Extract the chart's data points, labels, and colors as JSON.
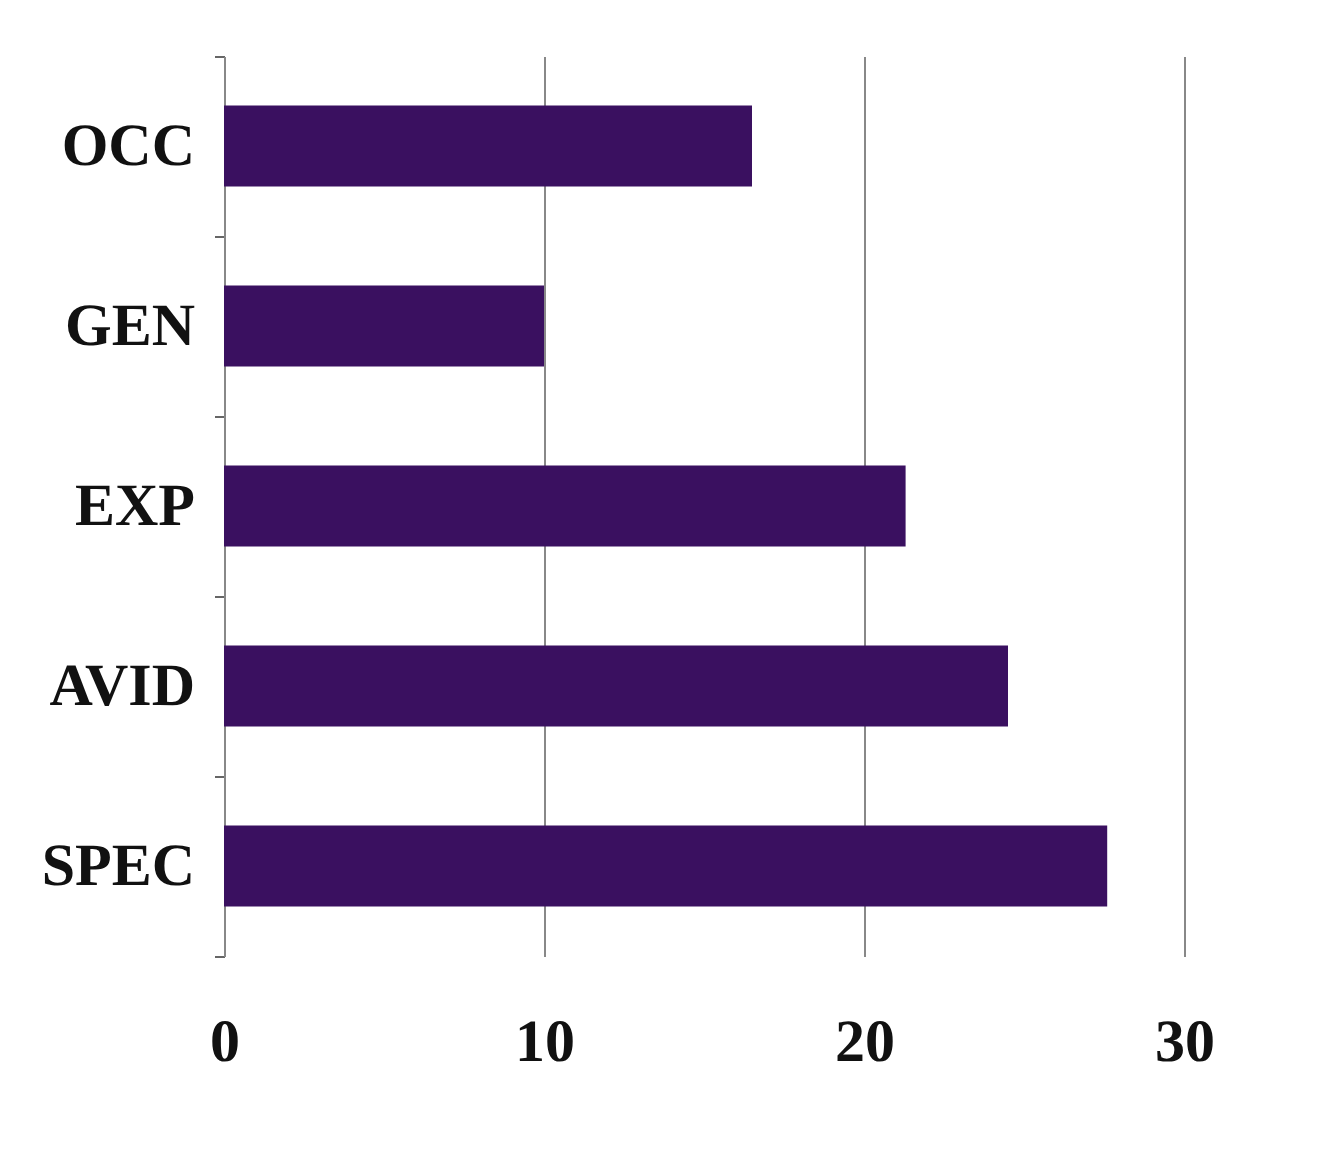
{
  "chart_data": {
    "type": "bar",
    "orientation": "horizontal",
    "categories": [
      "OCC",
      "GEN",
      "EXP",
      "AVID",
      "SPEC"
    ],
    "values": [
      16.5,
      10,
      21.3,
      24.5,
      27.6
    ],
    "color": "#3a1060",
    "xlim": [
      0,
      30
    ],
    "xticks": [
      0,
      10,
      20,
      30
    ],
    "grid": "x"
  }
}
